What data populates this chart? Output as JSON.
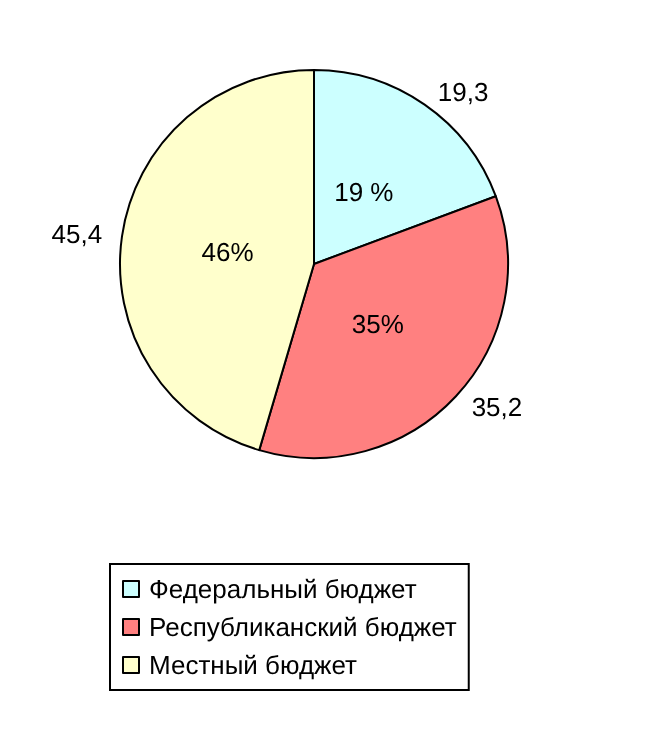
{
  "chart_data": {
    "type": "pie",
    "categories": [
      "Федеральный бюджет",
      "Республиканский бюджет",
      "Местный бюджет"
    ],
    "values": [
      19.3,
      35.2,
      45.4
    ],
    "colors": [
      "#ccffff",
      "#ff8080",
      "#ffffcc"
    ],
    "value_labels": [
      "19,3",
      "35,2",
      "45,4"
    ],
    "annotations": [
      {
        "text": "19 %",
        "x": "Федеральный бюджет"
      },
      {
        "text": "35%",
        "x": "Республиканский бюджет"
      },
      {
        "text": "46%",
        "x": "Местный бюджет"
      }
    ],
    "legend": "bottom"
  }
}
